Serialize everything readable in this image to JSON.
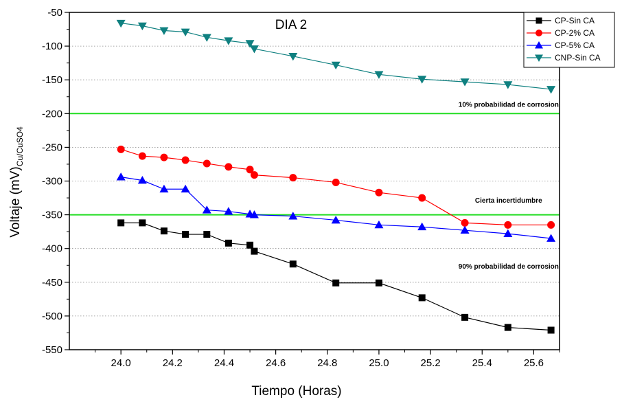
{
  "chart_data": {
    "type": "line",
    "title": "DIA 2",
    "xlabel": "Tiempo (Horas)",
    "ylabel": "Voltaje (mV)",
    "ylabel_sub": "Cu/CuSO4",
    "xlim": [
      23.8,
      25.7
    ],
    "ylim": [
      -550,
      -50
    ],
    "xticks": [
      24.0,
      24.2,
      24.4,
      24.6,
      24.8,
      25.0,
      25.2,
      25.4,
      25.6
    ],
    "xtick_labels": [
      "24.0",
      "24.2",
      "24.4",
      "24.6",
      "24.8",
      "25.0",
      "25.2",
      "25.4",
      "25.6"
    ],
    "yticks": [
      -50,
      -100,
      -150,
      -200,
      -250,
      -300,
      -350,
      -400,
      -450,
      -500,
      -550
    ],
    "ytick_labels": [
      "-50",
      "-100",
      "-150",
      "-200",
      "-250",
      "-300",
      "-350",
      "-400",
      "-450",
      "-500",
      "-550"
    ],
    "grid": "horizontal dotted",
    "legend_position": "top-right",
    "series": [
      {
        "name": "CP-Sin CA",
        "color": "#000000",
        "marker": "square",
        "x": [
          24.0,
          24.083,
          24.167,
          24.25,
          24.333,
          24.417,
          24.5,
          24.517,
          24.667,
          24.833,
          25.0,
          25.167,
          25.333,
          25.5,
          25.667
        ],
        "y": [
          -362,
          -362,
          -374,
          -379,
          -379,
          -392,
          -395,
          -404,
          -423,
          -451,
          -451,
          -473,
          -502,
          -517,
          -521
        ]
      },
      {
        "name": "CP-2% CA",
        "color": "#ff0000",
        "marker": "circle",
        "x": [
          24.0,
          24.083,
          24.167,
          24.25,
          24.333,
          24.417,
          24.5,
          24.517,
          24.667,
          24.833,
          25.0,
          25.167,
          25.333,
          25.5,
          25.667
        ],
        "y": [
          -253,
          -263,
          -265,
          -269,
          -274,
          -279,
          -283,
          -291,
          -295,
          -302,
          -317,
          -325,
          -362,
          -365,
          -365
        ]
      },
      {
        "name": "CP-5% CA",
        "color": "#0000ff",
        "marker": "triangle-up",
        "x": [
          24.0,
          24.083,
          24.167,
          24.25,
          24.333,
          24.417,
          24.5,
          24.517,
          24.667,
          24.833,
          25.0,
          25.167,
          25.333,
          25.5,
          25.667
        ],
        "y": [
          -294,
          -299,
          -312,
          -312,
          -343,
          -345,
          -349,
          -350,
          -352,
          -358,
          -365,
          -368,
          -373,
          -378,
          -385
        ]
      },
      {
        "name": "CNP-Sin CA",
        "color": "#0f8080",
        "marker": "triangle-down",
        "x": [
          24.0,
          24.083,
          24.167,
          24.25,
          24.333,
          24.417,
          24.5,
          24.517,
          24.667,
          24.833,
          25.0,
          25.167,
          25.333,
          25.5,
          25.667
        ],
        "y": [
          -66,
          -70,
          -77,
          -79,
          -87,
          -92,
          -96,
          -104,
          -115,
          -128,
          -142,
          -149,
          -153,
          -157,
          -164
        ]
      }
    ],
    "reference_lines": [
      {
        "y": -200,
        "color": "#22dd22"
      },
      {
        "y": -350,
        "color": "#22dd22"
      }
    ],
    "annotations": [
      {
        "text": "10% probabilidad de corrosion",
        "x": 25.5,
        "y": -190
      },
      {
        "text": "Cierta incertidumbre",
        "x": 25.5,
        "y": -332
      },
      {
        "text": "90% probabilidad de corrosion",
        "x": 25.5,
        "y": -430
      }
    ]
  }
}
